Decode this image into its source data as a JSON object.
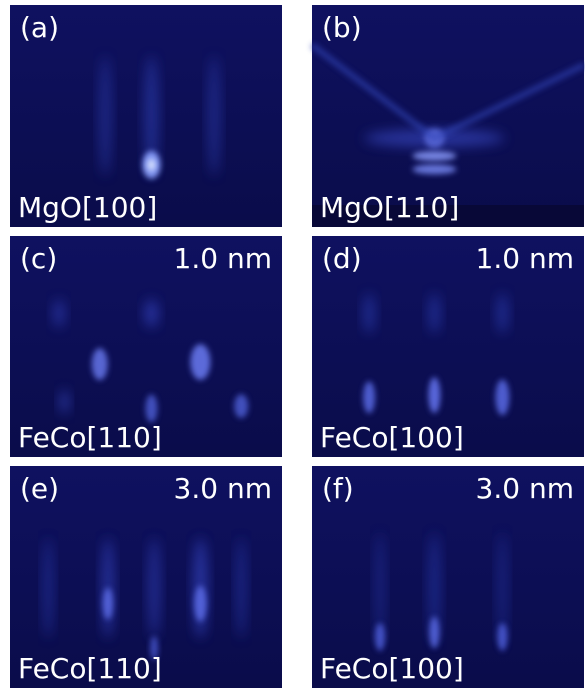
{
  "panels": [
    {
      "label": "(a)",
      "direction": "MgO[100]"
    },
    {
      "label": "(b)",
      "direction": "MgO[110]"
    },
    {
      "label": "(c)",
      "direction": "FeCo[110]",
      "thickness": "1.0 nm"
    },
    {
      "label": "(d)",
      "direction": "FeCo[100]",
      "thickness": "1.0 nm"
    },
    {
      "label": "(e)",
      "direction": "FeCo[110]",
      "thickness": "3.0 nm"
    },
    {
      "label": "(f)",
      "direction": "FeCo[100]",
      "thickness": "3.0 nm"
    }
  ]
}
